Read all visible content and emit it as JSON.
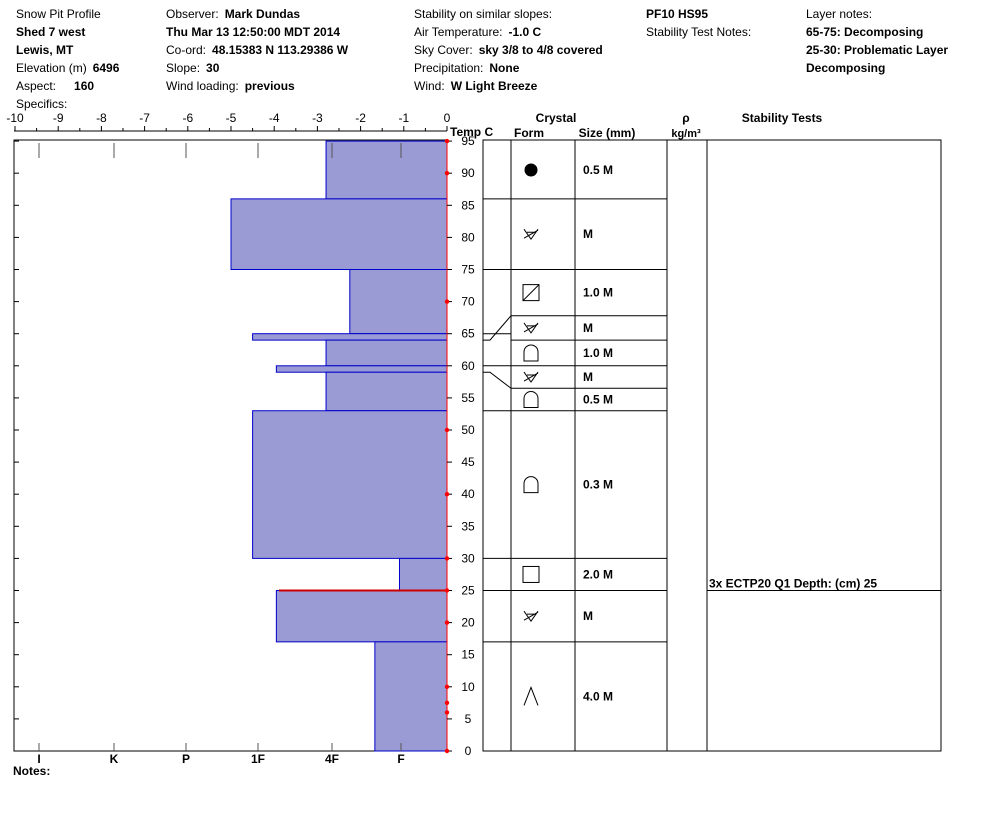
{
  "header": {
    "col1": {
      "title": "Snow Pit Profile",
      "location": "Shed 7 west",
      "region": "Lewis, MT",
      "elevation_label": "Elevation (m)",
      "elevation": "6496",
      "aspect_label": "Aspect:",
      "aspect": "160",
      "specifics_label": "Specifics:"
    },
    "col2": {
      "observer_label": "Observer:",
      "observer": "Mark Dundas",
      "datetime": "Thu Mar 13 12:50:00 MDT 2014",
      "coord_label": "Co-ord:",
      "coord": "48.15383 N 113.29386 W",
      "slope_label": "Slope:",
      "slope": "30",
      "wind_loading_label": "Wind loading:",
      "wind_loading": "previous"
    },
    "col3": {
      "stability_label": "Stability on similar slopes:",
      "air_temp_label": "Air Temperature:",
      "air_temp": "-1.0 C",
      "sky_label": "Sky Cover:",
      "sky": "sky 3/8 to 4/8 covered",
      "precip_label": "Precipitation:",
      "precip": "None",
      "wind_label": "Wind:",
      "wind": "W Light Breeze"
    },
    "col4": {
      "pf": "PF10 HS95",
      "stability_notes_label": "Stability Test Notes:"
    },
    "col5": {
      "layer_notes_label": "Layer notes:",
      "note1": "65-75: Decomposing",
      "note2": "25-30: Problematic Layer",
      "note3": "Decomposing"
    }
  },
  "column_headers": {
    "temp": "Temp C",
    "crystal": "Crystal",
    "form": "Form",
    "size": "Size (mm)",
    "rho": "ρ",
    "rho_unit": "kg/m³",
    "stability": "Stability Tests"
  },
  "notes_label": "Notes:",
  "colors": {
    "hardness_fill": "#9a9ad4",
    "hardness_edge": "#0000cc",
    "temp_marker": "#ff0000",
    "critical_line": "#cc0000"
  },
  "chart_data": {
    "type": "bar",
    "orientation": "horizontal",
    "x_axis": {
      "label": "Temp C",
      "ticks": [
        "-10",
        "-9",
        "-8",
        "-7",
        "-6",
        "-5",
        "-4",
        "-3",
        "-2",
        "-1",
        "0"
      ],
      "range": [
        -10,
        0
      ]
    },
    "y_axis": {
      "range": [
        0,
        95
      ],
      "ticks": [
        "0",
        "5",
        "10",
        "15",
        "20",
        "25",
        "30",
        "35",
        "40",
        "45",
        "50",
        "55",
        "60",
        "65",
        "70",
        "75",
        "80",
        "85",
        "90",
        "95"
      ]
    },
    "hardness_scale": [
      "I",
      "K",
      "P",
      "1F",
      "4F",
      "F"
    ],
    "hardness_layers": [
      {
        "bottom": 86,
        "top": 95,
        "width": 2.8
      },
      {
        "bottom": 75,
        "top": 86,
        "width": 5.0
      },
      {
        "bottom": 65,
        "top": 75,
        "width": 2.25
      },
      {
        "bottom": 64,
        "top": 65,
        "width": 4.5
      },
      {
        "bottom": 60,
        "top": 64,
        "width": 2.8
      },
      {
        "bottom": 59,
        "top": 60,
        "width": 3.95
      },
      {
        "bottom": 53,
        "top": 59,
        "width": 2.8
      },
      {
        "bottom": 30,
        "top": 53,
        "width": 4.5
      },
      {
        "bottom": 25,
        "top": 30,
        "width": 1.1
      },
      {
        "bottom": 17,
        "top": 25,
        "width": 3.95
      },
      {
        "bottom": 0,
        "top": 17,
        "width": 1.67
      }
    ],
    "temperature_markers": [
      95,
      90,
      70,
      50,
      40,
      30,
      25,
      20,
      10,
      7.5,
      6,
      0
    ],
    "crystal_layers": [
      {
        "bottom": 86,
        "top": 95,
        "form": "graupel",
        "size": "0.5 M"
      },
      {
        "bottom": 75,
        "top": 86,
        "form": "decomposing",
        "size": "M"
      },
      {
        "bottom": 67.8,
        "top": 75,
        "form": "mixed-forms",
        "size": "1.0 M"
      },
      {
        "bottom": 64,
        "top": 67.8,
        "form": "decomposing",
        "size": "M"
      },
      {
        "bottom": 60,
        "top": 64,
        "form": "rounded-facet",
        "size": "1.0 M"
      },
      {
        "bottom": 56.5,
        "top": 60,
        "form": "decomposing",
        "size": "M"
      },
      {
        "bottom": 53,
        "top": 56.5,
        "form": "rounded-facet",
        "size": "0.5 M"
      },
      {
        "bottom": 30,
        "top": 53,
        "form": "rounded-facet",
        "size": "0.3 M"
      },
      {
        "bottom": 25,
        "top": 30,
        "form": "facet",
        "size": "2.0 M"
      },
      {
        "bottom": 17,
        "top": 25,
        "form": "decomposing",
        "size": "M"
      },
      {
        "bottom": 0,
        "top": 17,
        "form": "depth-hoar",
        "size": "4.0 M"
      }
    ],
    "stability_tests": [
      {
        "depth": 25,
        "label": "3x ECTP20 Q1 Depth: (cm) 25"
      }
    ]
  }
}
